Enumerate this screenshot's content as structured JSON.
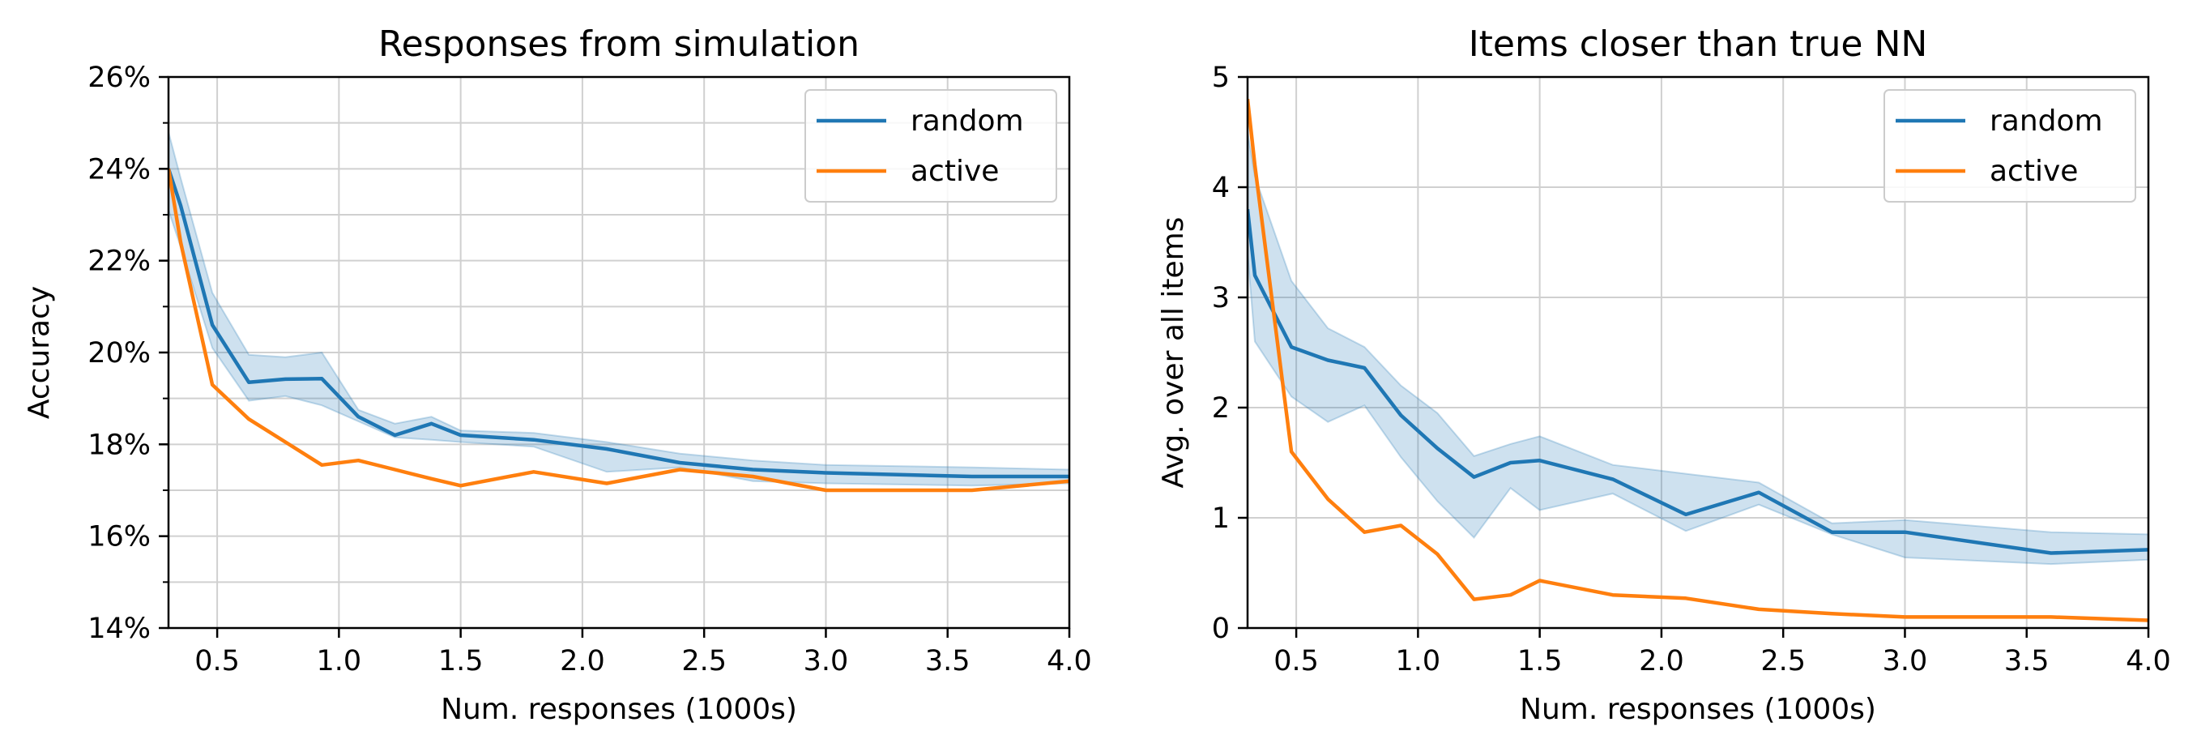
{
  "chart_data": [
    {
      "type": "line",
      "title": "Responses from simulation",
      "xlabel": "Num. responses (1000s)",
      "ylabel": "Accuracy",
      "xlim": [
        0.3,
        4.0
      ],
      "ylim": [
        14,
        26
      ],
      "x_ticks": [
        0.5,
        1.0,
        1.5,
        2.0,
        2.5,
        3.0,
        3.5,
        4.0
      ],
      "x_tick_labels": [
        "0.5",
        "1.0",
        "1.5",
        "2.0",
        "2.5",
        "3.0",
        "3.5",
        "4.0"
      ],
      "y_ticks": [
        14,
        16,
        18,
        20,
        22,
        24,
        26
      ],
      "y_tick_labels": [
        "14%",
        "16%",
        "18%",
        "20%",
        "22%",
        "24%",
        "26%"
      ],
      "y_minor_ticks": [
        15,
        17,
        19,
        21,
        23,
        25
      ],
      "grid": true,
      "legend_position": "top-right",
      "series": [
        {
          "name": "random",
          "color": "#1f77b4",
          "x": [
            0.3,
            0.35,
            0.48,
            0.63,
            0.78,
            0.93,
            1.08,
            1.23,
            1.38,
            1.5,
            1.8,
            2.1,
            2.4,
            2.7,
            3.0,
            3.6,
            4.0
          ],
          "y": [
            24.0,
            23.2,
            20.6,
            19.35,
            19.42,
            19.43,
            18.6,
            18.2,
            18.45,
            18.2,
            18.1,
            17.9,
            17.6,
            17.45,
            17.38,
            17.3,
            17.3
          ],
          "band_upper": [
            24.8,
            23.8,
            21.3,
            19.95,
            19.9,
            20.0,
            18.75,
            18.45,
            18.6,
            18.3,
            18.25,
            18.05,
            17.8,
            17.65,
            17.55,
            17.5,
            17.45
          ],
          "band_lower": [
            23.1,
            22.3,
            20.1,
            18.95,
            19.05,
            18.85,
            18.5,
            18.15,
            18.1,
            18.05,
            17.95,
            17.4,
            17.5,
            17.2,
            17.15,
            17.1,
            17.15
          ]
        },
        {
          "name": "active",
          "color": "#ff7f0e",
          "x": [
            0.3,
            0.35,
            0.48,
            0.63,
            0.78,
            0.93,
            1.08,
            1.23,
            1.38,
            1.5,
            1.8,
            2.1,
            2.4,
            2.7,
            3.0,
            3.6,
            4.0
          ],
          "y": [
            24.0,
            22.4,
            19.3,
            18.55,
            18.05,
            17.55,
            17.65,
            17.45,
            17.25,
            17.1,
            17.4,
            17.15,
            17.45,
            17.3,
            17.0,
            17.0,
            17.2
          ]
        }
      ]
    },
    {
      "type": "line",
      "title": "Items closer than true NN",
      "xlabel": "Num. responses (1000s)",
      "ylabel": "Avg. over all items",
      "xlim": [
        0.3,
        4.0
      ],
      "ylim": [
        0,
        5
      ],
      "x_ticks": [
        0.5,
        1.0,
        1.5,
        2.0,
        2.5,
        3.0,
        3.5,
        4.0
      ],
      "x_tick_labels": [
        "0.5",
        "1.0",
        "1.5",
        "2.0",
        "2.5",
        "3.0",
        "3.5",
        "4.0"
      ],
      "y_ticks": [
        0,
        1,
        2,
        3,
        4,
        5
      ],
      "y_tick_labels": [
        "0",
        "1",
        "2",
        "3",
        "4",
        "5"
      ],
      "y_minor_ticks": [],
      "grid": true,
      "legend_position": "top-right",
      "series": [
        {
          "name": "random",
          "color": "#1f77b4",
          "x": [
            0.3,
            0.33,
            0.48,
            0.63,
            0.78,
            0.93,
            1.08,
            1.23,
            1.38,
            1.5,
            1.8,
            2.1,
            2.4,
            2.7,
            3.0,
            3.6,
            4.0
          ],
          "y": [
            3.8,
            3.2,
            2.55,
            2.43,
            2.36,
            1.93,
            1.63,
            1.37,
            1.5,
            1.52,
            1.35,
            1.03,
            1.23,
            0.87,
            0.87,
            0.68,
            0.71
          ],
          "band_upper": [
            4.5,
            4.1,
            3.15,
            2.72,
            2.55,
            2.2,
            1.95,
            1.56,
            1.67,
            1.74,
            1.48,
            1.4,
            1.32,
            0.95,
            0.98,
            0.87,
            0.85
          ],
          "band_lower": [
            3.4,
            2.6,
            2.1,
            1.87,
            2.02,
            1.55,
            1.15,
            0.82,
            1.27,
            1.07,
            1.22,
            0.88,
            1.12,
            0.85,
            0.64,
            0.58,
            0.62
          ]
        },
        {
          "name": "active",
          "color": "#ff7f0e",
          "x": [
            0.3,
            0.33,
            0.48,
            0.63,
            0.78,
            0.93,
            1.08,
            1.23,
            1.38,
            1.5,
            1.8,
            2.1,
            2.4,
            2.7,
            3.0,
            3.6,
            4.0
          ],
          "y": [
            4.8,
            4.2,
            1.6,
            1.17,
            0.87,
            0.93,
            0.67,
            0.26,
            0.3,
            0.43,
            0.3,
            0.27,
            0.17,
            0.13,
            0.1,
            0.1,
            0.07
          ]
        }
      ]
    }
  ]
}
